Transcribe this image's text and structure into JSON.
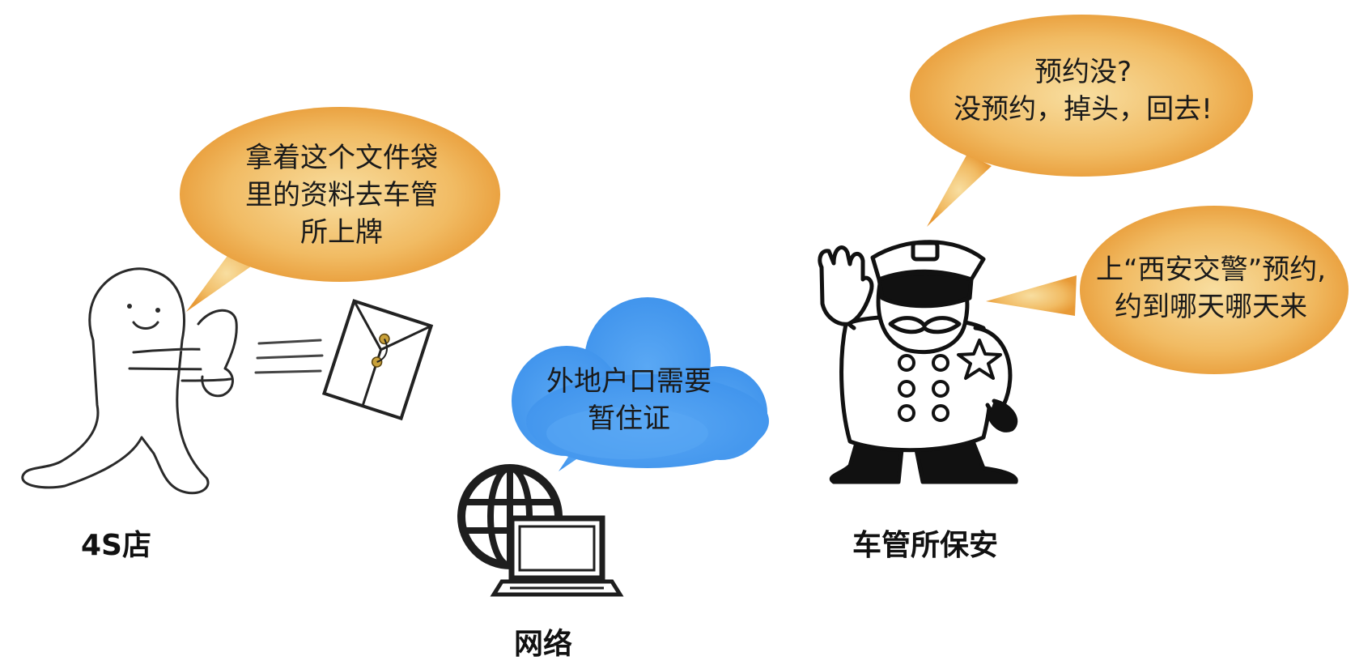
{
  "bubbles": {
    "shop_speech": "拿着这个文件袋\n里的资料去车管\n所上牌",
    "network_cloud": "外地户口需要\n暂住证",
    "guard_speech_top": "预约没?\n没预约，掉头，回去!",
    "guard_speech_right": "上“西安交警”预约,\n约到哪天哪天来"
  },
  "captions": {
    "shop": "4S店",
    "network": "网络",
    "guard": "车管所保安"
  },
  "colors": {
    "bubble_orange_light": "#f6d58e",
    "bubble_orange_dark": "#e99a35",
    "cloud_blue": "#4f9ff0",
    "cloud_blue_dark": "#3f8fe6",
    "envelope_accent": "#c9a13a",
    "ink": "#1a1a1a"
  },
  "icons": {
    "shop_character": "waving-blob-character-icon",
    "envelope": "document-envelope-icon",
    "network": "globe-laptop-icon",
    "guard": "police-officer-stop-icon"
  }
}
